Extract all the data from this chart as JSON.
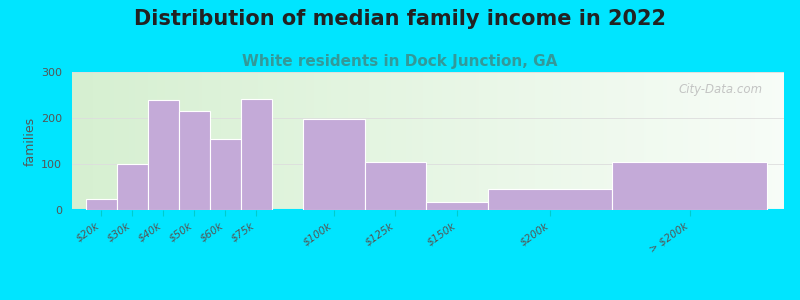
{
  "title": "Distribution of median family income in 2022",
  "subtitle": "White residents in Dock Junction, GA",
  "ylabel": "families",
  "categories": [
    "$20k",
    "$30k",
    "$40k",
    "$50k",
    "$60k",
    "$75k",
    "$100k",
    "$125k",
    "$150k",
    "$200k",
    "> $200k"
  ],
  "values": [
    25,
    100,
    240,
    215,
    155,
    242,
    198,
    105,
    18,
    45,
    105
  ],
  "bar_positions": [
    0,
    1,
    2,
    3,
    4,
    5,
    7,
    9,
    11,
    13,
    17
  ],
  "bar_widths": [
    1,
    1,
    1,
    1,
    1,
    1,
    2,
    2,
    2,
    4,
    5
  ],
  "bar_color": "#c4aad8",
  "bar_edge_color": "#ffffff",
  "bg_outer": "#00e5ff",
  "bg_plot_left": "#d6efd0",
  "bg_plot_right": "#f8fbf8",
  "ylim": [
    0,
    300
  ],
  "yticks": [
    0,
    100,
    200,
    300
  ],
  "title_fontsize": 15,
  "subtitle_fontsize": 11,
  "ylabel_fontsize": 9,
  "watermark": "City-Data.com"
}
